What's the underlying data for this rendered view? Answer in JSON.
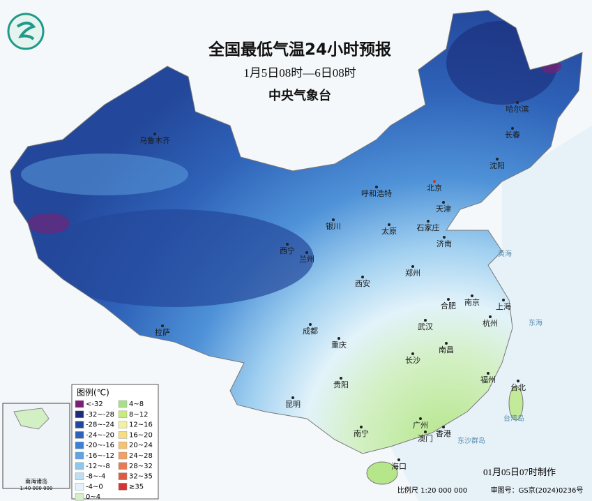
{
  "header": {
    "title": "全国最低气温24小时预报",
    "period": "1月5日08时—6日08时",
    "issuer": "中央气象台"
  },
  "cities": [
    {
      "label": "乌鲁木齐"
    },
    {
      "label": "哈尔滨"
    },
    {
      "label": "长春"
    },
    {
      "label": "沈阳"
    },
    {
      "label": "呼和浩特"
    },
    {
      "label": "北京",
      "color": "#c0392b"
    },
    {
      "label": "天津"
    },
    {
      "label": "银川"
    },
    {
      "label": "太原"
    },
    {
      "label": "石家庄"
    },
    {
      "label": "济南"
    },
    {
      "label": "西宁"
    },
    {
      "label": "兰州"
    },
    {
      "label": "郑州"
    },
    {
      "label": "西安"
    },
    {
      "label": "合肥"
    },
    {
      "label": "南京"
    },
    {
      "label": "上海"
    },
    {
      "label": "杭州"
    },
    {
      "label": "拉萨"
    },
    {
      "label": "成都"
    },
    {
      "label": "武汉"
    },
    {
      "label": "重庆"
    },
    {
      "label": "南昌"
    },
    {
      "label": "长沙"
    },
    {
      "label": "福州"
    },
    {
      "label": "贵阳"
    },
    {
      "label": "台北"
    },
    {
      "label": "昆明"
    },
    {
      "label": "广州"
    },
    {
      "label": "香港"
    },
    {
      "label": "澳门"
    },
    {
      "label": "南宁"
    },
    {
      "label": "海口"
    }
  ],
  "seas": [
    "黄海",
    "东海",
    "台湾岛",
    "东沙群岛"
  ],
  "legend": {
    "title": "图例(℃)",
    "items": [
      {
        "label": "<-32",
        "color": "#7a1f74"
      },
      {
        "label": "-32~-28",
        "color": "#1b2c78"
      },
      {
        "label": "-28~-24",
        "color": "#23479a"
      },
      {
        "label": "-24~-20",
        "color": "#2e62b8"
      },
      {
        "label": "-20~-16",
        "color": "#3b80d2"
      },
      {
        "label": "-16~-12",
        "color": "#5fa3e2"
      },
      {
        "label": "-12~-8",
        "color": "#8ec6ee"
      },
      {
        "label": "-8~-4",
        "color": "#bbdff5"
      },
      {
        "label": "-4~0",
        "color": "#e2f3fa"
      },
      {
        "label": "0~4",
        "color": "#d3f0c4"
      },
      {
        "label": "4~8",
        "color": "#a8e08a"
      },
      {
        "label": "8~12",
        "color": "#c9ec78"
      },
      {
        "label": "12~16",
        "color": "#f2f1a2"
      },
      {
        "label": "16~20",
        "color": "#f6dd82"
      },
      {
        "label": "20~24",
        "color": "#f5c272"
      },
      {
        "label": "24~28",
        "color": "#f1a162"
      },
      {
        "label": "28~32",
        "color": "#e97a52"
      },
      {
        "label": "32~35",
        "color": "#e05a40"
      },
      {
        "label": "≥35",
        "color": "#d63232"
      }
    ]
  },
  "inset": {
    "label": "南海诸岛",
    "scale": "1:40 000 000"
  },
  "footer": {
    "made": "01月05日07时制作",
    "scale": "比例尺 1:20 000 000",
    "approval": "审图号：GS京(2024)0236号"
  }
}
